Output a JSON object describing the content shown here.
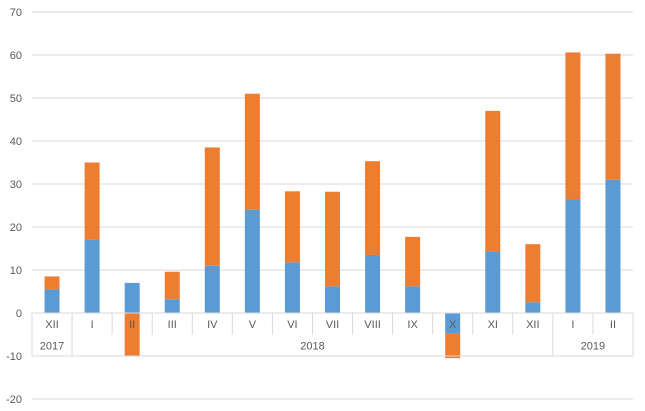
{
  "chart_data": {
    "type": "bar",
    "stacked": true,
    "categories": [
      "XII",
      "I",
      "II",
      "III",
      "IV",
      "V",
      "VI",
      "VII",
      "VIII",
      "IX",
      "X",
      "XI",
      "XII",
      "I",
      "II"
    ],
    "year_groups": [
      {
        "label": "2017",
        "start": 0,
        "end": 0
      },
      {
        "label": "2018",
        "start": 1,
        "end": 12
      },
      {
        "label": "2019",
        "start": 13,
        "end": 14
      }
    ],
    "series": [
      {
        "color": "#5b9bd5",
        "values": [
          5.5,
          17,
          7,
          3.2,
          11,
          24,
          11.8,
          6.2,
          13.5,
          6.2,
          -4.8,
          14.2,
          2.5,
          26.5,
          31
        ]
      },
      {
        "color": "#ed7d31",
        "values": [
          3,
          18,
          -10,
          6.4,
          27.5,
          27,
          16.5,
          22,
          21.8,
          11.5,
          -5.7,
          32.8,
          13.5,
          34.1,
          29.3
        ]
      }
    ],
    "ylim": [
      -20,
      70
    ],
    "yticks": [
      -20,
      -10,
      0,
      10,
      20,
      30,
      40,
      50,
      60,
      70
    ],
    "grid": true
  }
}
